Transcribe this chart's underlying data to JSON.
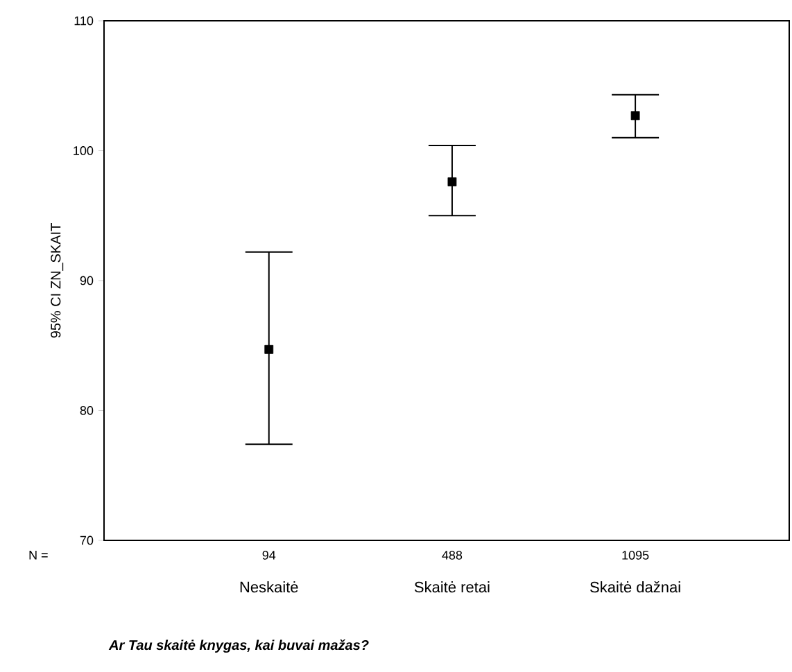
{
  "chart_data": {
    "type": "scatter",
    "xlabel": "Ar Tau skaitė knygas, kai buvai mažas?",
    "ylabel": "95% CI ZN_SKAIT",
    "categories": [
      "Neskaitė",
      "Skaitė retai",
      "Skaitė dažnai"
    ],
    "values": [
      84.7,
      97.6,
      102.7
    ],
    "errors": [
      [
        77.4,
        92.2
      ],
      [
        95.0,
        100.4
      ],
      [
        101.0,
        104.3
      ]
    ],
    "color": "#000000",
    "marker": "square",
    "ylim": [
      70,
      110
    ],
    "yticks": [
      70,
      80,
      90,
      100,
      110
    ],
    "grid": false,
    "annotations": [
      "N =",
      "94",
      "488",
      "1095"
    ]
  }
}
